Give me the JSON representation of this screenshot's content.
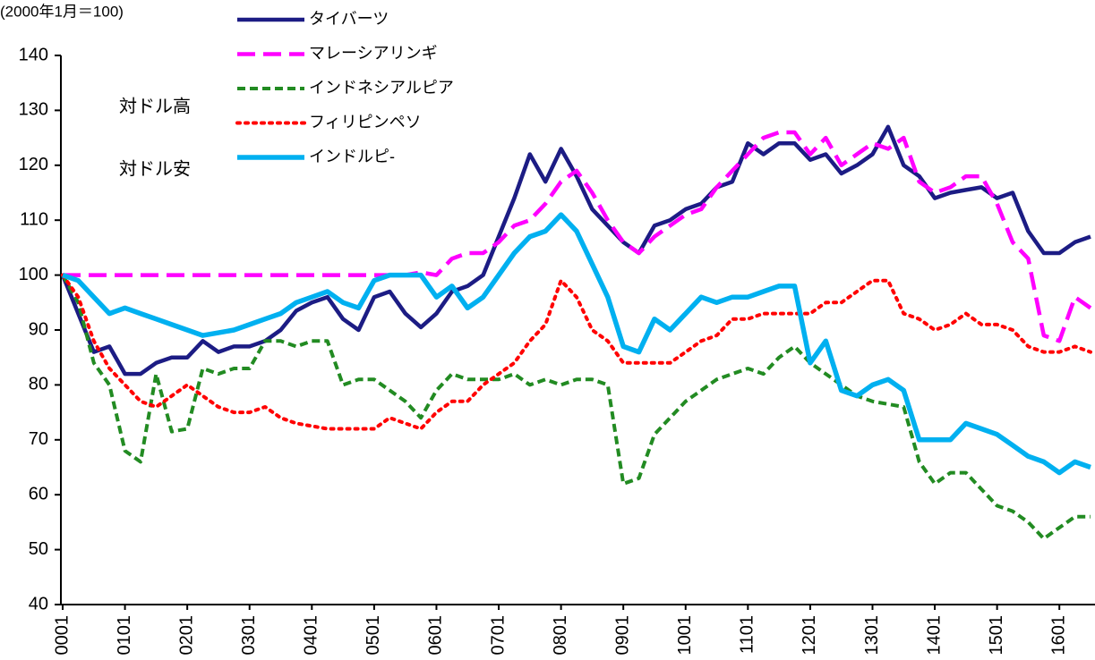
{
  "chart_data": {
    "type": "line",
    "title": "(2000年1月＝100)",
    "annotations": [
      "対ドル高",
      "対ドル安"
    ],
    "categories": [
      "0001",
      null,
      null,
      null,
      "0101",
      null,
      null,
      null,
      "0201",
      null,
      null,
      null,
      "0301",
      null,
      null,
      null,
      "0401",
      null,
      null,
      null,
      "0501",
      null,
      null,
      null,
      "0601",
      null,
      null,
      null,
      "0701",
      null,
      null,
      null,
      "0801",
      null,
      null,
      null,
      "0901",
      null,
      null,
      null,
      "1001",
      null,
      null,
      null,
      "1101",
      null,
      null,
      null,
      "1201",
      null,
      null,
      null,
      "1301",
      null,
      null,
      null,
      "1401",
      null,
      null,
      null,
      "1501",
      null,
      null,
      null,
      "1601",
      null,
      null
    ],
    "ylim": [
      40,
      140
    ],
    "yticks": [
      40,
      50,
      60,
      70,
      80,
      90,
      100,
      110,
      120,
      130,
      140
    ],
    "grid": false,
    "series": [
      {
        "name": "タイバーツ",
        "color": "#1c1c84",
        "dash": "solid",
        "values": [
          100,
          93,
          86,
          87,
          82,
          82,
          84,
          85,
          85,
          88,
          86,
          87,
          87,
          88,
          90,
          93.5,
          95,
          96,
          92,
          90,
          96,
          97,
          93,
          90.5,
          93,
          97,
          98,
          100,
          107,
          114,
          122,
          117,
          123,
          118,
          112,
          109,
          106,
          104,
          109,
          110,
          112,
          113,
          116,
          117,
          124,
          122,
          124,
          124,
          121,
          122,
          118.5,
          120,
          122,
          127,
          120,
          118,
          114,
          115,
          115.5,
          116,
          114,
          115,
          108,
          104,
          104,
          106,
          107
        ]
      },
      {
        "name": "マレーシアリンギ",
        "color": "#ff00ff",
        "dash": "dashed",
        "values": [
          100,
          100,
          100,
          100,
          100,
          100,
          100,
          100,
          100,
          100,
          100,
          100,
          100,
          100,
          100,
          100,
          100,
          100,
          100,
          100,
          100,
          100,
          100,
          100.5,
          100,
          103,
          104,
          104,
          106,
          109,
          110,
          113,
          117,
          119,
          115,
          110,
          106,
          104,
          107,
          109,
          111,
          112,
          116,
          119,
          122,
          125,
          126,
          126,
          122,
          125,
          120,
          122,
          124,
          123,
          125,
          117,
          115,
          116,
          118,
          118,
          113,
          106,
          103,
          89,
          88,
          96,
          94
        ]
      },
      {
        "name": "インドネシアルピア",
        "color": "#228b22",
        "dash": "short",
        "values": [
          100,
          95,
          84,
          80,
          68,
          66,
          82,
          71.5,
          72,
          83,
          82,
          83,
          83,
          88,
          88,
          87,
          88,
          88,
          80,
          81,
          81,
          79,
          77,
          74,
          79,
          82,
          81,
          81,
          81,
          82,
          80,
          81,
          80,
          81,
          81,
          80,
          62,
          63,
          71,
          74,
          77,
          79,
          81,
          82,
          83,
          82,
          85,
          87,
          84,
          82,
          80,
          78,
          77,
          76.5,
          76,
          66,
          62,
          64,
          64,
          61,
          58,
          57,
          55,
          52,
          54,
          56,
          56
        ]
      },
      {
        "name": "フィリピンペソ",
        "color": "#ff0000",
        "dash": "dotted",
        "values": [
          100,
          96,
          88,
          83,
          80,
          77,
          76,
          78,
          80,
          78,
          76,
          75,
          75,
          76,
          74,
          73,
          72.5,
          72,
          72,
          72,
          72,
          74,
          73,
          72,
          75,
          77,
          77,
          80,
          82,
          84,
          88,
          91,
          99,
          96,
          90,
          88,
          84,
          84,
          84,
          84,
          86,
          88,
          89,
          92,
          92,
          93,
          93,
          93,
          93,
          95,
          95,
          97,
          99,
          99,
          93,
          92,
          90,
          91,
          93,
          91,
          91,
          90,
          87,
          86,
          86,
          87,
          86
        ]
      },
      {
        "name": "インドルピ-",
        "color": "#00b0f0",
        "dash": "solid",
        "values": [
          100,
          99,
          96,
          93,
          94,
          93,
          92,
          91,
          90,
          89,
          89.5,
          90,
          91,
          92,
          93,
          95,
          96,
          97,
          95,
          94,
          99,
          100,
          100,
          100,
          96,
          98,
          94,
          96,
          100,
          104,
          107,
          108,
          111,
          108,
          102,
          96,
          87,
          86,
          92,
          90,
          93,
          96,
          95,
          96,
          96,
          97,
          98,
          98,
          84,
          88,
          79,
          78,
          80,
          81,
          79,
          70,
          70,
          70,
          73,
          72,
          71,
          69,
          67,
          66,
          64,
          66,
          65
        ]
      }
    ]
  }
}
